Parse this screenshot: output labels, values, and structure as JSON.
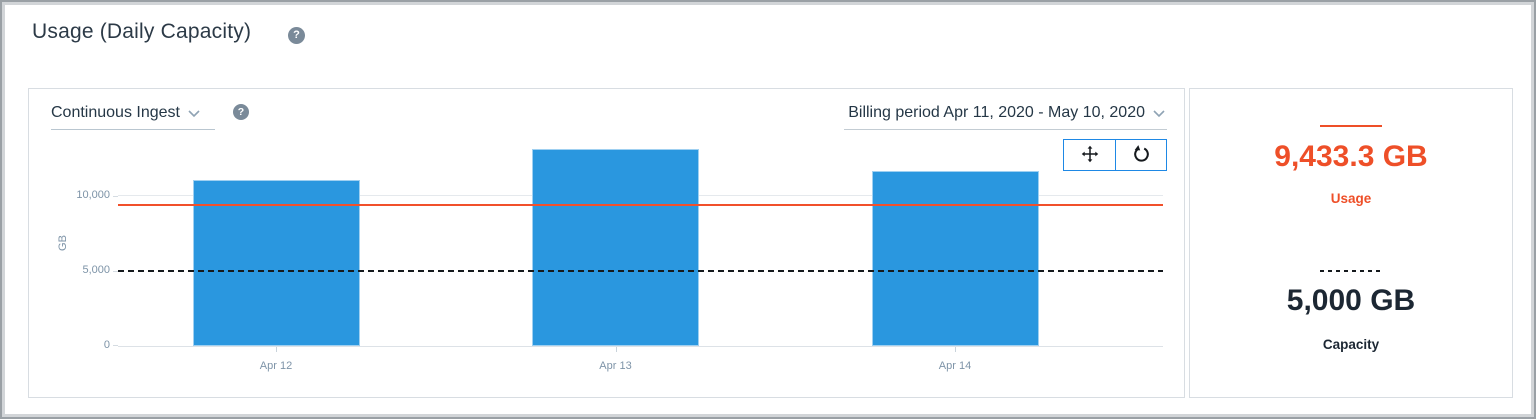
{
  "page": {
    "title": "Usage (Daily Capacity)"
  },
  "icons": {
    "help_glyph": "?",
    "page_help": "question-mark-circle",
    "dataset_help": "question-mark-circle",
    "dataset_chevron": "chevron-down",
    "billing_chevron": "chevron-down",
    "pan": "move-arrows",
    "reset": "rotate-reset-arrow"
  },
  "chart_card": {
    "dataset_selector": {
      "label": "Continuous Ingest"
    },
    "billing_period": {
      "label": "Billing period Apr 11, 2020 - May 10, 2020"
    },
    "toolbar": {
      "buttons": [
        {
          "name": "pan",
          "icon": "move-arrows"
        },
        {
          "name": "reset-zoom",
          "icon": "rotate-reset-arrow"
        }
      ]
    }
  },
  "chart_data": {
    "type": "bar",
    "title": "",
    "xlabel": "",
    "ylabel": "GB",
    "categories": [
      "Apr 12",
      "Apr 13",
      "Apr 14"
    ],
    "series": [
      {
        "name": "Continuous Ingest",
        "type": "bar",
        "color": "#2a97df",
        "values": [
          11050,
          13150,
          11650
        ]
      }
    ],
    "reference_lines": [
      {
        "name": "Usage",
        "value": 9433.3,
        "style": "solid",
        "color": "#f1502b"
      },
      {
        "name": "Capacity",
        "value": 5000,
        "style": "dashed",
        "color": "#15191d"
      }
    ],
    "yticks": [
      0,
      5000,
      10000
    ],
    "ytick_labels": [
      "0",
      "5,000",
      "10,000"
    ],
    "ylim": [
      0,
      13600
    ],
    "gridlines_at": [
      10000
    ],
    "legend_position": "right-panel"
  },
  "summary_panel": {
    "usage": {
      "value": "9,433.3 GB",
      "label": "Usage",
      "color": "#ee4f28",
      "swatch": "solid"
    },
    "capacity": {
      "value": "5,000 GB",
      "label": "Capacity",
      "color": "#1c2733",
      "swatch": "dashed"
    }
  }
}
